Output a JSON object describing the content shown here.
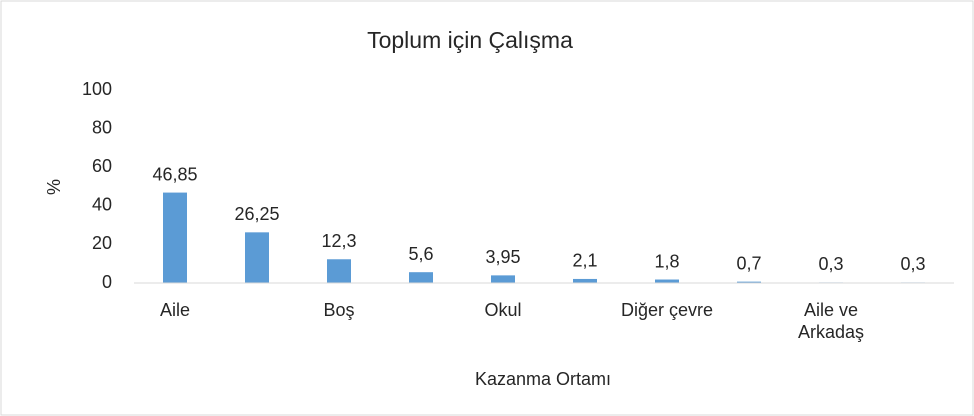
{
  "chart_data": {
    "type": "bar",
    "title": "Toplum için Çalışma",
    "xlabel": "Kazanma Ortamı",
    "ylabel": "%",
    "categories": [
      "Aile",
      null,
      "Boş",
      null,
      "Okul",
      null,
      "Diğer çevre",
      null,
      "Aile ve Arkadaş",
      null
    ],
    "values": [
      46.85,
      26.25,
      12.3,
      5.6,
      3.95,
      2.1,
      1.8,
      0.7,
      0.3,
      0.3
    ],
    "value_labels": [
      "46,85",
      "26,25",
      "12,3",
      "5,6",
      "3,95",
      "2,1",
      "1,8",
      "0,7",
      "0,3",
      "0,3"
    ],
    "color": "#5b9bd5",
    "ylim": [
      0,
      100
    ],
    "yticks": [
      0,
      20,
      40,
      60,
      80,
      100
    ],
    "grid": false
  }
}
